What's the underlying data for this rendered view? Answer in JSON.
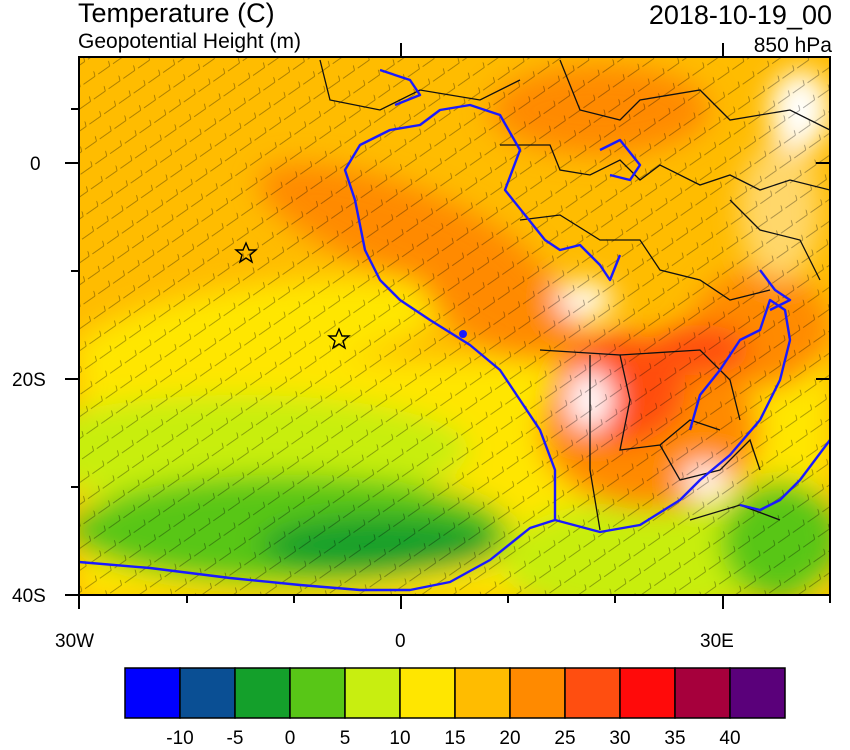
{
  "header": {
    "title": "Temperature (C)",
    "subtitle": "Geopotential Height (m)",
    "date": "2018-10-19_00",
    "level": "850 hPa"
  },
  "axes": {
    "lat_ticks": [
      "0",
      "20S",
      "40S"
    ],
    "lon_ticks": [
      "30W",
      "0",
      "30E"
    ]
  },
  "colorbar": {
    "colors": [
      "#0000ff",
      "#0a4f94",
      "#14a02b",
      "#58c617",
      "#c8ee10",
      "#ffe600",
      "#ffbc00",
      "#ff8a00",
      "#ff4e10",
      "#ff0a0a",
      "#a6003c",
      "#5a007a"
    ],
    "labels": [
      "-10",
      "-5",
      "0",
      "5",
      "10",
      "15",
      "20",
      "25",
      "30",
      "35",
      "40"
    ]
  },
  "colors": {
    "coastline": "#1a1aff",
    "borders": "#111111"
  }
}
